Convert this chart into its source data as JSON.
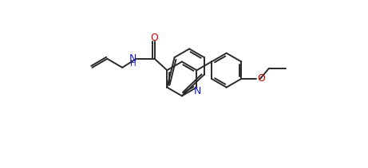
{
  "bg_color": "#ffffff",
  "line_color": "#2a2a2a",
  "lw": 1.4,
  "figsize": [
    4.61,
    2.11
  ],
  "dpi": 100,
  "xlim": [
    0,
    10.5
  ],
  "ylim": [
    1.5,
    9.5
  ]
}
